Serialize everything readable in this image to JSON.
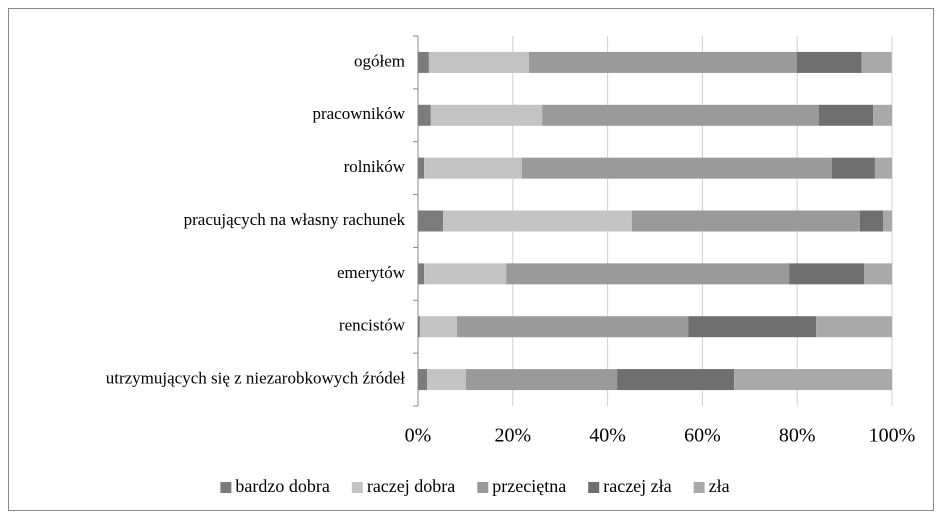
{
  "chart_data": {
    "type": "stacked_bar_horizontal",
    "categories": [
      "ogółem",
      "pracowników",
      "rolników",
      "pracujących na własny rachunek",
      "emerytów",
      "rencistów",
      "utrzymujących się z niezarobkowych źródeł"
    ],
    "series": [
      {
        "name": "bardzo dobra",
        "color": "#7c7c7c",
        "values": [
          2.3,
          2.7,
          1.3,
          5.3,
          1.3,
          0.4,
          1.9
        ]
      },
      {
        "name": "raczej dobra",
        "color": "#c3c3c3",
        "values": [
          21.1,
          23.5,
          20.6,
          39.8,
          17.3,
          7.8,
          8.2
        ]
      },
      {
        "name": "przeciętna",
        "color": "#9a9a9a",
        "values": [
          56.5,
          58.4,
          65.4,
          48.1,
          59.7,
          48.8,
          31.9
        ]
      },
      {
        "name": "raczej zła",
        "color": "#6f6f6f",
        "values": [
          13.7,
          11.4,
          9.1,
          4.9,
          15.8,
          27.0,
          24.7
        ]
      },
      {
        "name": "zła",
        "color": "#a9a9a9",
        "values": [
          6.3,
          4.0,
          3.6,
          1.9,
          5.9,
          16.0,
          33.3
        ]
      }
    ],
    "xlim": [
      0,
      100
    ],
    "xticks": [
      {
        "value": 0,
        "label": "0%"
      },
      {
        "value": 20,
        "label": "20%"
      },
      {
        "value": 40,
        "label": "40%"
      },
      {
        "value": 60,
        "label": "60%"
      },
      {
        "value": 80,
        "label": "80%"
      },
      {
        "value": 100,
        "label": "100%"
      }
    ],
    "grid": true,
    "legend": "bottom"
  }
}
